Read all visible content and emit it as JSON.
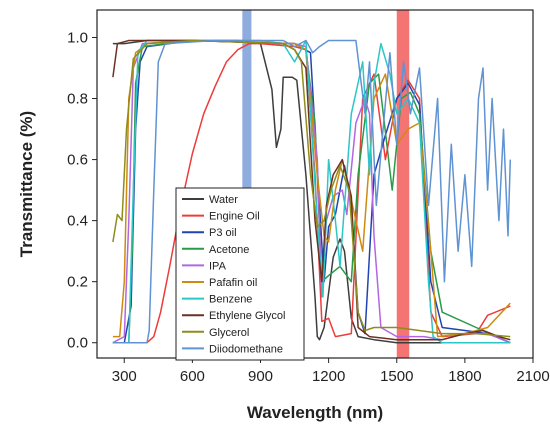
{
  "chart_data": {
    "type": "line",
    "title": "",
    "xlabel": "Wavelength (nm)",
    "ylabel": "Transmittance (%)",
    "xlim": [
      180,
      2100
    ],
    "ylim": [
      -0.05,
      1.09
    ],
    "xticks": [
      300,
      600,
      900,
      1200,
      1500,
      1800,
      2100
    ],
    "yticks": [
      0.0,
      0.2,
      0.4,
      0.6,
      0.8,
      1.0
    ],
    "xtick_labels": [
      "300",
      "600",
      "900",
      "1200",
      "1500",
      "1800",
      "2100"
    ],
    "ytick_labels": [
      "0.0",
      "0.2",
      "0.4",
      "0.6",
      "0.8",
      "1.0"
    ],
    "grid": false,
    "legend_position": "lower-center",
    "bands": [
      {
        "x_min": 820,
        "x_max": 860,
        "color": "#7a9ed8"
      },
      {
        "x_min": 1500,
        "x_max": 1555,
        "color": "#f25a5a"
      }
    ],
    "series": [
      {
        "name": "Water",
        "color": "#3d3d3d",
        "points": [
          [
            250,
            0.98
          ],
          [
            300,
            0.98
          ],
          [
            400,
            0.99
          ],
          [
            600,
            0.99
          ],
          [
            800,
            0.99
          ],
          [
            900,
            0.98
          ],
          [
            950,
            0.83
          ],
          [
            970,
            0.64
          ],
          [
            990,
            0.7
          ],
          [
            1000,
            0.87
          ],
          [
            1040,
            0.87
          ],
          [
            1060,
            0.86
          ],
          [
            1100,
            0.55
          ],
          [
            1140,
            0.15
          ],
          [
            1150,
            0.02
          ],
          [
            1160,
            0.01
          ],
          [
            1180,
            0.05
          ],
          [
            1220,
            0.28
          ],
          [
            1250,
            0.34
          ],
          [
            1270,
            0.3
          ],
          [
            1300,
            0.08
          ],
          [
            1330,
            0.02
          ],
          [
            1400,
            0.01
          ],
          [
            1500,
            0.0
          ],
          [
            1800,
            0.0
          ],
          [
            2000,
            0.0
          ]
        ]
      },
      {
        "name": "Engine Oil",
        "color": "#ee3b3b",
        "points": [
          [
            250,
            0.0
          ],
          [
            400,
            0.0
          ],
          [
            430,
            0.02
          ],
          [
            460,
            0.1
          ],
          [
            500,
            0.25
          ],
          [
            550,
            0.45
          ],
          [
            600,
            0.62
          ],
          [
            650,
            0.75
          ],
          [
            700,
            0.84
          ],
          [
            750,
            0.92
          ],
          [
            800,
            0.96
          ],
          [
            850,
            0.98
          ],
          [
            900,
            0.98
          ],
          [
            1050,
            0.97
          ],
          [
            1100,
            0.96
          ],
          [
            1140,
            0.55
          ],
          [
            1170,
            0.07
          ],
          [
            1200,
            0.08
          ],
          [
            1230,
            0.02
          ],
          [
            1300,
            0.03
          ],
          [
            1350,
            0.8
          ],
          [
            1400,
            0.88
          ],
          [
            1450,
            0.6
          ],
          [
            1500,
            0.8
          ],
          [
            1550,
            0.86
          ],
          [
            1600,
            0.8
          ],
          [
            1650,
            0.1
          ],
          [
            1700,
            0.02
          ],
          [
            1850,
            0.03
          ],
          [
            1900,
            0.09
          ],
          [
            2000,
            0.12
          ]
        ]
      },
      {
        "name": "P3 oil",
        "color": "#1f45b0",
        "points": [
          [
            250,
            0.0
          ],
          [
            300,
            0.0
          ],
          [
            330,
            0.12
          ],
          [
            350,
            0.7
          ],
          [
            370,
            0.92
          ],
          [
            400,
            0.97
          ],
          [
            600,
            0.99
          ],
          [
            1050,
            0.98
          ],
          [
            1120,
            0.95
          ],
          [
            1160,
            0.45
          ],
          [
            1180,
            0.2
          ],
          [
            1200,
            0.38
          ],
          [
            1230,
            0.42
          ],
          [
            1270,
            0.58
          ],
          [
            1300,
            0.45
          ],
          [
            1330,
            0.1
          ],
          [
            1360,
            0.03
          ],
          [
            1400,
            0.55
          ],
          [
            1450,
            0.68
          ],
          [
            1500,
            0.8
          ],
          [
            1550,
            0.85
          ],
          [
            1600,
            0.78
          ],
          [
            1650,
            0.2
          ],
          [
            1700,
            0.05
          ],
          [
            1800,
            0.04
          ],
          [
            1900,
            0.03
          ],
          [
            2000,
            0.0
          ]
        ]
      },
      {
        "name": "Acetone",
        "color": "#2a9a48",
        "points": [
          [
            250,
            0.0
          ],
          [
            320,
            0.0
          ],
          [
            335,
            0.3
          ],
          [
            350,
            0.85
          ],
          [
            380,
            0.97
          ],
          [
            600,
            0.99
          ],
          [
            1050,
            0.98
          ],
          [
            1100,
            0.96
          ],
          [
            1140,
            0.72
          ],
          [
            1170,
            0.2
          ],
          [
            1200,
            0.22
          ],
          [
            1250,
            0.25
          ],
          [
            1300,
            0.2
          ],
          [
            1330,
            0.55
          ],
          [
            1380,
            0.85
          ],
          [
            1420,
            0.88
          ],
          [
            1480,
            0.5
          ],
          [
            1520,
            0.8
          ],
          [
            1560,
            0.82
          ],
          [
            1600,
            0.75
          ],
          [
            1650,
            0.3
          ],
          [
            1700,
            0.1
          ],
          [
            1850,
            0.05
          ],
          [
            2000,
            0.0
          ]
        ]
      },
      {
        "name": "IPA",
        "color": "#b267e0",
        "points": [
          [
            250,
            0.0
          ],
          [
            300,
            0.02
          ],
          [
            320,
            0.4
          ],
          [
            340,
            0.9
          ],
          [
            380,
            0.98
          ],
          [
            600,
            0.99
          ],
          [
            1050,
            0.98
          ],
          [
            1100,
            0.97
          ],
          [
            1150,
            0.6
          ],
          [
            1170,
            0.15
          ],
          [
            1190,
            0.4
          ],
          [
            1220,
            0.48
          ],
          [
            1260,
            0.5
          ],
          [
            1280,
            0.42
          ],
          [
            1320,
            0.72
          ],
          [
            1360,
            0.8
          ],
          [
            1380,
            0.75
          ],
          [
            1400,
            0.35
          ],
          [
            1430,
            0.05
          ],
          [
            1500,
            0.02
          ],
          [
            1560,
            0.02
          ],
          [
            1620,
            0.02
          ],
          [
            1700,
            0.01
          ],
          [
            1800,
            0.03
          ],
          [
            1900,
            0.03
          ],
          [
            2000,
            0.0
          ]
        ]
      },
      {
        "name": "Pafafin oil",
        "color": "#cf8a12",
        "points": [
          [
            250,
            0.02
          ],
          [
            280,
            0.02
          ],
          [
            300,
            0.2
          ],
          [
            320,
            0.8
          ],
          [
            350,
            0.95
          ],
          [
            400,
            0.98
          ],
          [
            600,
            0.99
          ],
          [
            1050,
            0.98
          ],
          [
            1100,
            0.96
          ],
          [
            1150,
            0.55
          ],
          [
            1180,
            0.35
          ],
          [
            1200,
            0.33
          ],
          [
            1230,
            0.5
          ],
          [
            1260,
            0.6
          ],
          [
            1290,
            0.5
          ],
          [
            1320,
            0.4
          ],
          [
            1350,
            0.3
          ],
          [
            1400,
            0.8
          ],
          [
            1450,
            0.88
          ],
          [
            1500,
            0.65
          ],
          [
            1550,
            0.7
          ],
          [
            1600,
            0.72
          ],
          [
            1650,
            0.3
          ],
          [
            1680,
            0.02
          ],
          [
            1800,
            0.03
          ],
          [
            1900,
            0.05
          ],
          [
            2000,
            0.13
          ]
        ]
      },
      {
        "name": "Benzene",
        "color": "#2cc6c6",
        "points": [
          [
            250,
            0.0
          ],
          [
            320,
            0.0
          ],
          [
            340,
            0.5
          ],
          [
            360,
            0.95
          ],
          [
            400,
            0.99
          ],
          [
            900,
            0.99
          ],
          [
            1000,
            0.98
          ],
          [
            1050,
            0.92
          ],
          [
            1100,
            0.99
          ],
          [
            1150,
            0.4
          ],
          [
            1175,
            0.15
          ],
          [
            1200,
            0.6
          ],
          [
            1230,
            0.4
          ],
          [
            1250,
            0.25
          ],
          [
            1280,
            0.55
          ],
          [
            1300,
            0.75
          ],
          [
            1350,
            0.92
          ],
          [
            1380,
            0.55
          ],
          [
            1400,
            0.85
          ],
          [
            1430,
            0.98
          ],
          [
            1470,
            0.88
          ],
          [
            1500,
            0.75
          ],
          [
            1550,
            0.8
          ],
          [
            1600,
            0.72
          ],
          [
            1640,
            0.2
          ],
          [
            1660,
            0.02
          ],
          [
            1700,
            0.0
          ],
          [
            2000,
            0.0
          ]
        ]
      },
      {
        "name": "Ethylene Glycol",
        "color": "#6b3222",
        "points": [
          [
            250,
            0.87
          ],
          [
            270,
            0.98
          ],
          [
            320,
            0.99
          ],
          [
            600,
            0.99
          ],
          [
            1000,
            0.98
          ],
          [
            1050,
            0.96
          ],
          [
            1100,
            0.9
          ],
          [
            1140,
            0.4
          ],
          [
            1170,
            0.2
          ],
          [
            1190,
            0.45
          ],
          [
            1220,
            0.55
          ],
          [
            1260,
            0.6
          ],
          [
            1300,
            0.48
          ],
          [
            1330,
            0.05
          ],
          [
            1380,
            0.02
          ],
          [
            1500,
            0.01
          ],
          [
            1700,
            0.01
          ],
          [
            1800,
            0.03
          ],
          [
            1880,
            0.04
          ],
          [
            1950,
            0.02
          ],
          [
            2000,
            0.01
          ]
        ]
      },
      {
        "name": "Glycerol",
        "color": "#8f8d1a",
        "points": [
          [
            250,
            0.33
          ],
          [
            270,
            0.42
          ],
          [
            290,
            0.4
          ],
          [
            310,
            0.7
          ],
          [
            340,
            0.93
          ],
          [
            400,
            0.98
          ],
          [
            600,
            0.99
          ],
          [
            1000,
            0.98
          ],
          [
            1050,
            0.96
          ],
          [
            1080,
            0.92
          ],
          [
            1120,
            0.55
          ],
          [
            1150,
            0.38
          ],
          [
            1180,
            0.4
          ],
          [
            1210,
            0.5
          ],
          [
            1250,
            0.58
          ],
          [
            1290,
            0.5
          ],
          [
            1330,
            0.1
          ],
          [
            1360,
            0.04
          ],
          [
            1400,
            0.05
          ],
          [
            1500,
            0.05
          ],
          [
            1700,
            0.03
          ],
          [
            1850,
            0.03
          ],
          [
            2000,
            0.02
          ]
        ]
      },
      {
        "name": "Diiodomethane",
        "color": "#5f93d3",
        "points": [
          [
            250,
            0.0
          ],
          [
            400,
            0.0
          ],
          [
            410,
            0.04
          ],
          [
            430,
            0.5
          ],
          [
            450,
            0.92
          ],
          [
            480,
            0.98
          ],
          [
            700,
            0.99
          ],
          [
            900,
            0.99
          ],
          [
            1000,
            0.99
          ],
          [
            1050,
            0.97
          ],
          [
            1100,
            0.99
          ],
          [
            1130,
            0.95
          ],
          [
            1160,
            0.97
          ],
          [
            1200,
            0.99
          ],
          [
            1260,
            0.99
          ],
          [
            1320,
            0.99
          ],
          [
            1360,
            0.75
          ],
          [
            1380,
            0.92
          ],
          [
            1410,
            0.45
          ],
          [
            1440,
            0.7
          ],
          [
            1470,
            0.95
          ],
          [
            1500,
            0.65
          ],
          [
            1530,
            0.92
          ],
          [
            1560,
            0.75
          ],
          [
            1600,
            0.9
          ],
          [
            1640,
            0.45
          ],
          [
            1680,
            0.8
          ],
          [
            1710,
            0.2
          ],
          [
            1740,
            0.65
          ],
          [
            1770,
            0.3
          ],
          [
            1800,
            0.55
          ],
          [
            1830,
            0.25
          ],
          [
            1860,
            0.8
          ],
          [
            1880,
            0.9
          ],
          [
            1900,
            0.5
          ],
          [
            1920,
            0.8
          ],
          [
            1950,
            0.4
          ],
          [
            1970,
            0.7
          ],
          [
            1990,
            0.35
          ],
          [
            2000,
            0.6
          ]
        ]
      }
    ]
  }
}
